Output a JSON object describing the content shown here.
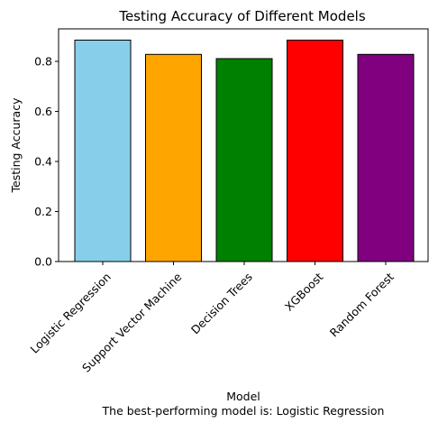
{
  "chart_data": {
    "type": "bar",
    "title": "Testing Accuracy of Different Models",
    "xlabel": "Model",
    "ylabel": "Testing Accuracy",
    "footnote": "The best-performing model is: Logistic Regression",
    "categories": [
      "Logistic Regression",
      "Support Vector Machine",
      "Decision Trees",
      "XGBoost",
      "Random Forest"
    ],
    "values": [
      0.885,
      0.828,
      0.811,
      0.885,
      0.828
    ],
    "colors": [
      "#87ceeb",
      "#ffa500",
      "#008000",
      "#ff0000",
      "#800080"
    ],
    "edge_color": "#000000",
    "ylim": [
      0,
      0.93
    ],
    "yticks": [
      0.0,
      0.2,
      0.4,
      0.6,
      0.8
    ],
    "ytick_labels": [
      "0.0",
      "0.2",
      "0.4",
      "0.6",
      "0.8"
    ],
    "xtick_rotation": 45,
    "grid": false,
    "legend": "none"
  }
}
